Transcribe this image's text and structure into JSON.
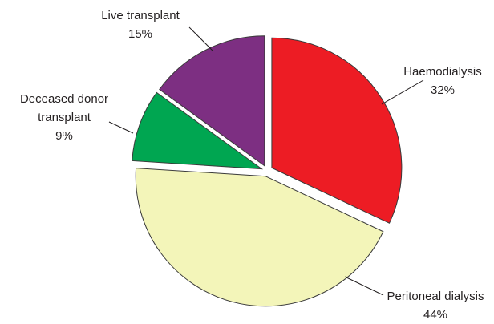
{
  "chart_data": {
    "type": "pie",
    "categories": [
      "Haemodialysis",
      "Peritoneal dialysis",
      "Deceased donor transplant",
      "Live transplant"
    ],
    "values": [
      32,
      44,
      9,
      15
    ],
    "value_labels": [
      "32%",
      "44%",
      "9%",
      "15%"
    ],
    "colors": [
      "#ed1c24",
      "#f3f5b9",
      "#00a651",
      "#7d2f82"
    ]
  }
}
